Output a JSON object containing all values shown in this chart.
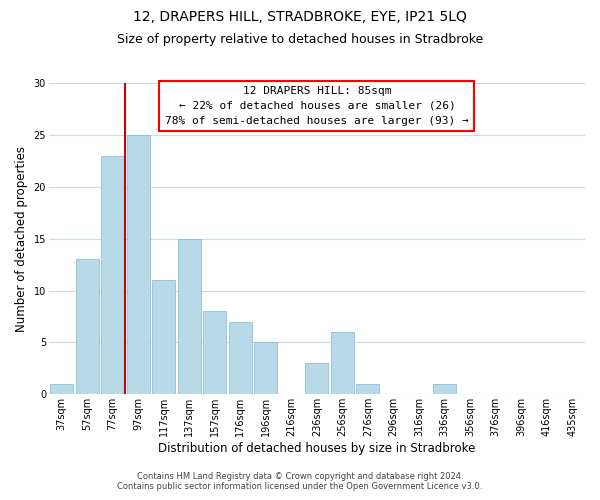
{
  "title": "12, DRAPERS HILL, STRADBROKE, EYE, IP21 5LQ",
  "subtitle": "Size of property relative to detached houses in Stradbroke",
  "xlabel": "Distribution of detached houses by size in Stradbroke",
  "ylabel": "Number of detached properties",
  "bar_labels": [
    "37sqm",
    "57sqm",
    "77sqm",
    "97sqm",
    "117sqm",
    "137sqm",
    "157sqm",
    "176sqm",
    "196sqm",
    "216sqm",
    "236sqm",
    "256sqm",
    "276sqm",
    "296sqm",
    "316sqm",
    "336sqm",
    "356sqm",
    "376sqm",
    "396sqm",
    "416sqm",
    "435sqm"
  ],
  "bar_values": [
    1,
    13,
    23,
    25,
    11,
    15,
    8,
    7,
    5,
    0,
    3,
    6,
    1,
    0,
    0,
    1,
    0,
    0,
    0,
    0,
    0
  ],
  "bar_color": "#b8d9e8",
  "bar_edge_color": "#7fb8d4",
  "highlight_color": "#cc0000",
  "red_line_x": 2.5,
  "ylim": [
    0,
    30
  ],
  "yticks": [
    0,
    5,
    10,
    15,
    20,
    25,
    30
  ],
  "annotation_line1": "12 DRAPERS HILL: 85sqm",
  "annotation_line2": "← 22% of detached houses are smaller (26)",
  "annotation_line3": "78% of semi-detached houses are larger (93) →",
  "footer_line1": "Contains HM Land Registry data © Crown copyright and database right 2024.",
  "footer_line2": "Contains public sector information licensed under the Open Government Licence v3.0.",
  "background_color": "#ffffff",
  "grid_color": "#c8dce8",
  "title_fontsize": 10,
  "subtitle_fontsize": 9,
  "axis_label_fontsize": 8.5,
  "tick_fontsize": 7,
  "annotation_fontsize": 8,
  "footer_fontsize": 6
}
